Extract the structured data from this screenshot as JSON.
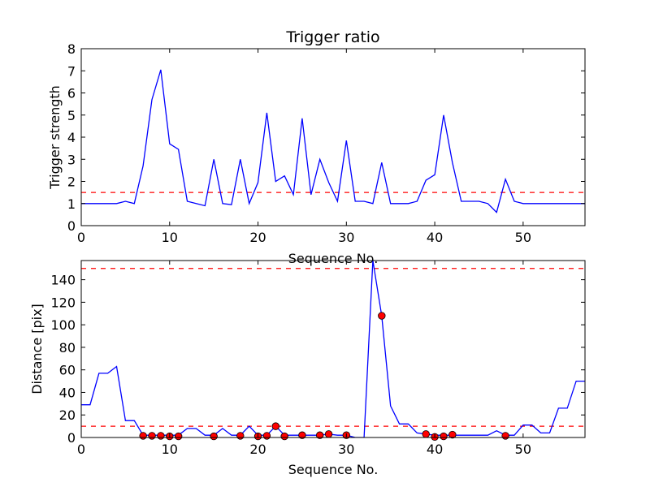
{
  "chart_data": [
    {
      "type": "line",
      "title": "Trigger ratio",
      "xlabel": "Sequence No.",
      "ylabel": "Trigger strength",
      "xlim": [
        0,
        57
      ],
      "ylim": [
        0,
        8
      ],
      "xticks": [
        "0",
        "10",
        "20",
        "30",
        "40",
        "50"
      ],
      "yticks": [
        "0",
        "1",
        "2",
        "3",
        "4",
        "5",
        "6",
        "7",
        "8"
      ],
      "line_color": "#0000ff",
      "series": [
        {
          "x": [
            0,
            1,
            2,
            3,
            4,
            5,
            6,
            7,
            8,
            9,
            10,
            11,
            12,
            13,
            14,
            15,
            16,
            17,
            18,
            19,
            20,
            21,
            22,
            23,
            24,
            25,
            26,
            27,
            28,
            29,
            30,
            31,
            32,
            33,
            34,
            35,
            36,
            37,
            38,
            39,
            40,
            41,
            42,
            43,
            44,
            45,
            46,
            47,
            48,
            49,
            50,
            51,
            52,
            53,
            54,
            55,
            56,
            57
          ],
          "values": [
            1.0,
            1.0,
            1.0,
            1.0,
            1.0,
            1.1,
            1.0,
            2.7,
            5.7,
            7.05,
            3.7,
            3.45,
            1.1,
            1.0,
            0.9,
            3.0,
            1.0,
            0.95,
            3.0,
            1.0,
            1.95,
            5.1,
            2.0,
            2.25,
            1.4,
            4.85,
            1.4,
            3.0,
            1.95,
            1.1,
            3.85,
            1.1,
            1.1,
            1.0,
            2.85,
            1.0,
            1.0,
            1.0,
            1.1,
            2.05,
            2.3,
            5.0,
            2.85,
            1.1,
            1.1,
            1.1,
            1.0,
            0.6,
            2.1,
            1.1,
            1.0,
            1.0,
            1.0,
            1.0,
            1.0,
            1.0,
            1.0,
            1.0
          ]
        }
      ],
      "threshold": {
        "value": 1.5,
        "color": "#ff0000",
        "style": "dashed"
      }
    },
    {
      "type": "line",
      "title": "",
      "xlabel": "Sequence No.",
      "ylabel": "Distance [pix]",
      "xlim": [
        0,
        57
      ],
      "ylim": [
        0,
        157
      ],
      "xticks": [
        "0",
        "10",
        "20",
        "30",
        "40",
        "50"
      ],
      "yticks": [
        "0",
        "20",
        "40",
        "60",
        "80",
        "100",
        "120",
        "140"
      ],
      "line_color": "#0000ff",
      "marker_color": "#ff0000",
      "series": [
        {
          "x": [
            0,
            1,
            2,
            3,
            4,
            5,
            6,
            7,
            8,
            9,
            10,
            11,
            12,
            13,
            14,
            15,
            16,
            17,
            18,
            19,
            20,
            21,
            22,
            23,
            24,
            25,
            26,
            27,
            28,
            29,
            30,
            31,
            32,
            33,
            34,
            35,
            36,
            37,
            38,
            39,
            40,
            41,
            42,
            43,
            44,
            45,
            46,
            47,
            48,
            49,
            50,
            51,
            52,
            53,
            54,
            55,
            56,
            57
          ],
          "values": [
            29,
            29,
            57,
            57,
            63,
            15,
            15,
            2,
            2,
            2,
            2,
            2,
            8,
            8,
            2,
            2,
            8,
            2,
            2,
            10,
            2,
            2,
            10,
            2,
            2,
            2,
            2,
            2,
            3,
            2,
            2,
            0,
            0,
            157,
            108,
            28,
            12,
            12,
            4,
            3,
            2,
            2,
            2,
            2,
            2,
            2,
            2,
            6,
            2,
            2,
            11,
            11,
            4,
            4,
            26,
            26,
            50,
            50
          ]
        }
      ],
      "markers": {
        "x": [
          7,
          8,
          9,
          10,
          11,
          15,
          18,
          20,
          21,
          22,
          23,
          25,
          27,
          28,
          30,
          34,
          39,
          40,
          41,
          42,
          48
        ],
        "values": [
          1.5,
          1.5,
          1.5,
          1,
          1,
          1,
          1.5,
          1,
          1.5,
          10,
          1,
          2,
          2,
          3,
          2,
          108,
          3,
          0.5,
          1,
          2.5,
          1.5
        ]
      },
      "thresholds": [
        {
          "value": 10,
          "color": "#ff0000",
          "style": "dashed"
        },
        {
          "value": 150,
          "color": "#ff0000",
          "style": "dashed"
        }
      ]
    }
  ]
}
